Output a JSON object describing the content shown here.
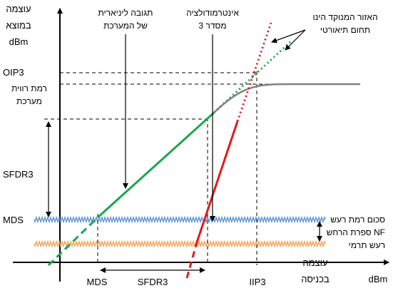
{
  "y_axis": {
    "title_lines": [
      "עוצמה",
      "במוצא",
      "dBm"
    ]
  },
  "x_axis": {
    "title_lines": [
      "עוצמה",
      "בכניסה"
    ],
    "unit": "dBm"
  },
  "levels": {
    "oip3": "OIP3",
    "saturation_lines": [
      "רמת רווית",
      "מערכת"
    ],
    "sfdr_vertical": "SFDR3",
    "mds": "MDS"
  },
  "x_markers": {
    "mds": "MDS",
    "sfdr": "SFDR3",
    "iip3": "IIP3"
  },
  "annotations": {
    "linear_response_lines": [
      "תגובה ליניארית",
      "של המערכת"
    ],
    "intermod_lines": [
      "אינטרמודולציה",
      "מסדר 3"
    ],
    "theoretical_lines": [
      "האזור המנוקד הינו",
      "תחום תיאורטי"
    ]
  },
  "noise_labels": {
    "total_noise": "סכום רמת רעש",
    "noise_figure": "ספרת הרחש NF",
    "thermal_noise": "רעש תרמי"
  },
  "colors": {
    "linear": "#1aa64a",
    "intermod": "#e01b1b",
    "saturation_curve": "#808080",
    "noise_total": "#5b8fd0",
    "noise_thermal": "#f4a052"
  }
}
